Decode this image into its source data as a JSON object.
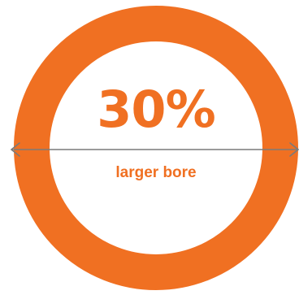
{
  "infographic": {
    "percentage": "30%",
    "caption": "larger bore",
    "level": 0.3
  },
  "colors": {
    "accent": "#F07022",
    "arrow": "#7A7A7A",
    "background": "#FFFFFF"
  },
  "icons": {
    "dimension_arrow": "double-headed-arrow-icon"
  }
}
